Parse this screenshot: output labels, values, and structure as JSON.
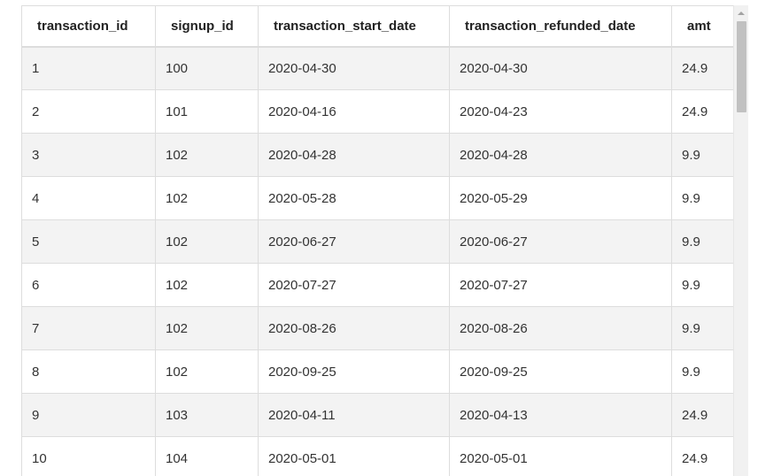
{
  "table": {
    "columns": [
      "transaction_id",
      "signup_id",
      "transaction_start_date",
      "transaction_refunded_date",
      "amt"
    ],
    "rows": [
      [
        "1",
        "100",
        "2020-04-30",
        "2020-04-30",
        "24.9"
      ],
      [
        "2",
        "101",
        "2020-04-16",
        "2020-04-23",
        "24.9"
      ],
      [
        "3",
        "102",
        "2020-04-28",
        "2020-04-28",
        "9.9"
      ],
      [
        "4",
        "102",
        "2020-05-28",
        "2020-05-29",
        "9.9"
      ],
      [
        "5",
        "102",
        "2020-06-27",
        "2020-06-27",
        "9.9"
      ],
      [
        "6",
        "102",
        "2020-07-27",
        "2020-07-27",
        "9.9"
      ],
      [
        "7",
        "102",
        "2020-08-26",
        "2020-08-26",
        "9.9"
      ],
      [
        "8",
        "102",
        "2020-09-25",
        "2020-09-25",
        "9.9"
      ],
      [
        "9",
        "103",
        "2020-04-11",
        "2020-04-13",
        "24.9"
      ],
      [
        "10",
        "104",
        "2020-05-01",
        "2020-05-01",
        "24.9"
      ]
    ]
  },
  "scrollbar": {
    "up_icon": "chevron-up-icon"
  },
  "colors": {
    "border": "#dddddd",
    "row_alt": "#f3f3f3",
    "scroll_thumb": "#c1c1c1"
  }
}
